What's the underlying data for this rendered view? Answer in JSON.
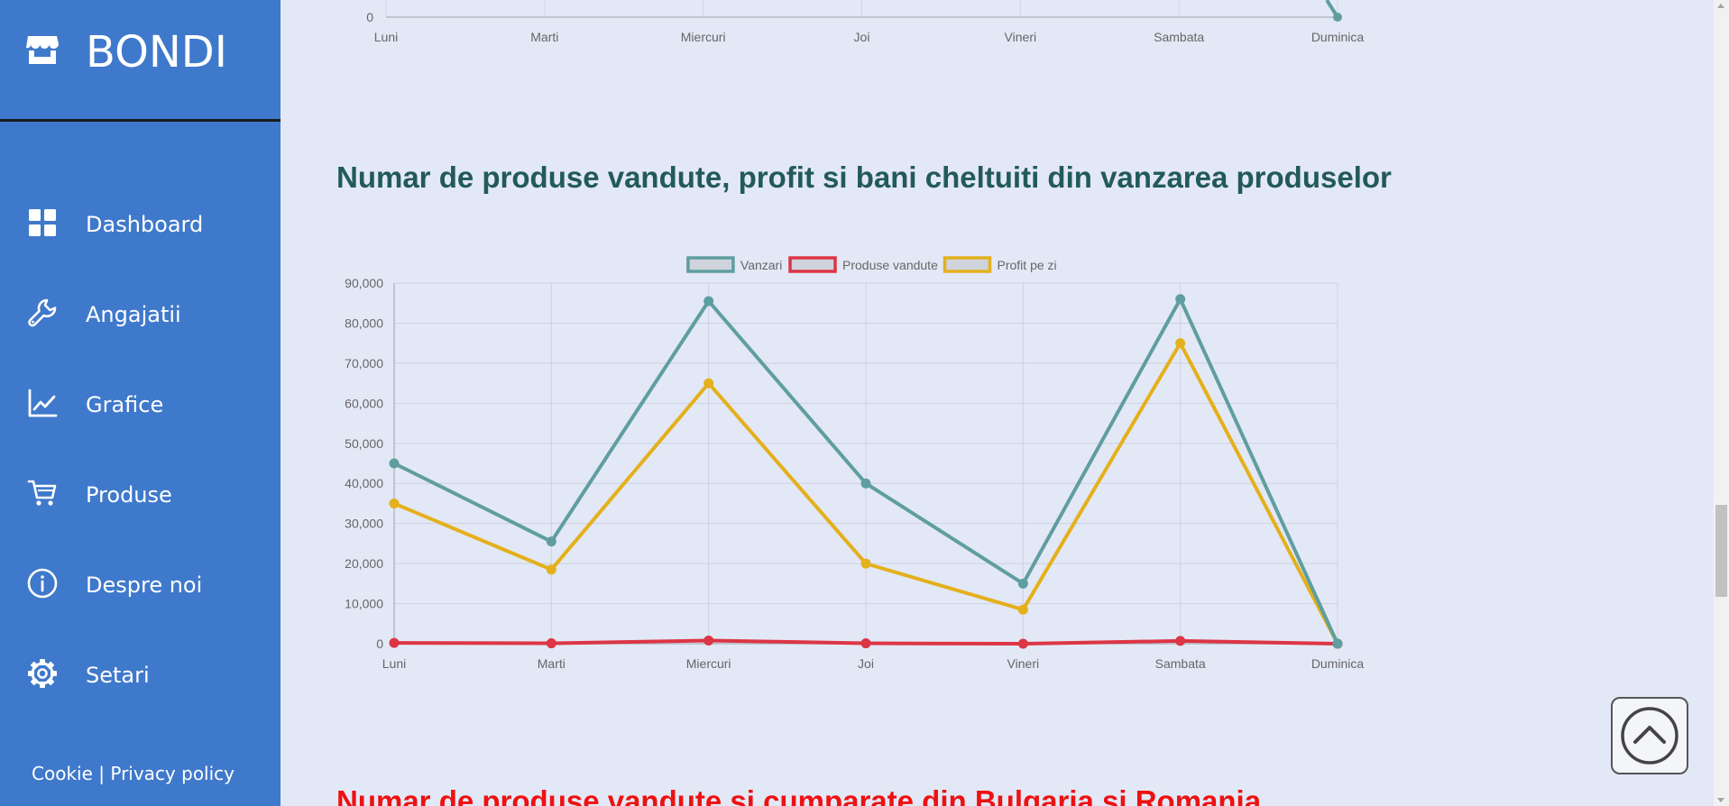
{
  "brand": {
    "name": "BONDI",
    "icon": "store-icon"
  },
  "nav": [
    {
      "label": "Dashboard",
      "icon": "grid-icon"
    },
    {
      "label": "Angajatii",
      "icon": "wrench-icon"
    },
    {
      "label": "Grafice",
      "icon": "line-chart-icon"
    },
    {
      "label": "Produse",
      "icon": "cart-icon"
    },
    {
      "label": "Despre noi",
      "icon": "info-icon"
    },
    {
      "label": "Setari",
      "icon": "gear-icon"
    }
  ],
  "footer": {
    "cookie": "Cookie",
    "separator": "|",
    "privacy": "Privacy policy"
  },
  "top_chart": {
    "zero_label": "0",
    "categories": [
      "Luni",
      "Marti",
      "Miercuri",
      "Joi",
      "Vineri",
      "Sambata",
      "Duminica"
    ]
  },
  "section_title": "Numar de produse vandute, profit si bani cheltuiti din vanzarea produselor",
  "next_section_title": "Numar de produse vandute si cumparate din Bulgaria si Romania",
  "chart_data": {
    "type": "line",
    "categories": [
      "Luni",
      "Marti",
      "Miercuri",
      "Joi",
      "Vineri",
      "Sambata",
      "Duminica"
    ],
    "ylim": [
      0,
      90000
    ],
    "yticks": [
      "0",
      "10,000",
      "20,000",
      "30,000",
      "40,000",
      "50,000",
      "60,000",
      "70,000",
      "80,000",
      "90,000"
    ],
    "grid": true,
    "legend_position": "top-center",
    "series": [
      {
        "name": "Vanzari",
        "color": "#5f9ea0",
        "values": [
          45000,
          25500,
          85500,
          40000,
          15000,
          86000,
          0
        ]
      },
      {
        "name": "Produse vandute",
        "color": "#dc3545",
        "values": [
          200,
          100,
          800,
          100,
          0,
          700,
          0
        ]
      },
      {
        "name": "Profit pe zi",
        "color": "#e4b01b",
        "values": [
          35000,
          18500,
          65000,
          20000,
          8500,
          75000,
          0
        ]
      }
    ]
  },
  "back_to_top": {
    "icon": "chevron-up-icon"
  }
}
